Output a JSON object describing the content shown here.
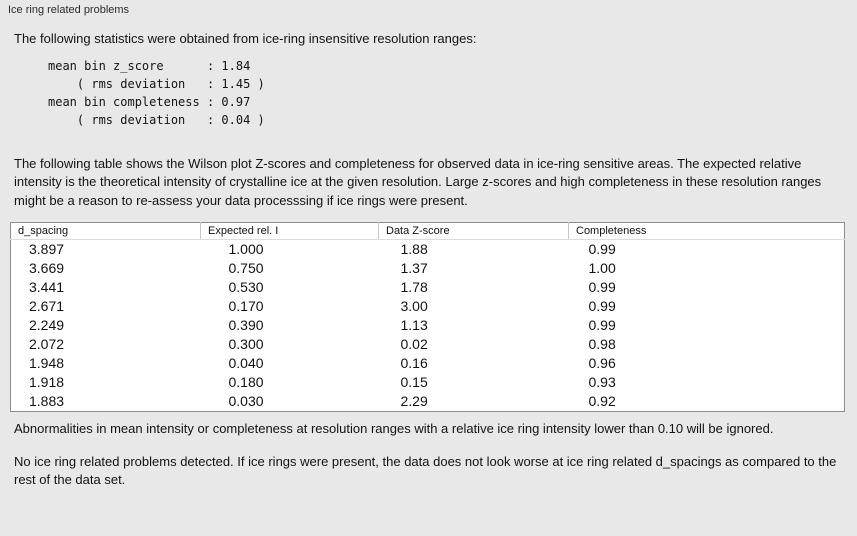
{
  "panel": {
    "title": "Ice ring related problems"
  },
  "intro": "The following statistics were obtained from ice-ring insensitive resolution ranges:",
  "stats_block": "mean bin z_score      : 1.84\n    ( rms deviation   : 1.45 )\nmean bin completeness : 0.97\n    ( rms deviation   : 0.04 )",
  "description": "The following table shows the Wilson plot Z-scores and completeness for observed data in ice-ring sensitive areas. The expected relative intensity is the theoretical intensity of crystalline ice at the given resolution. Large z-scores and high completeness in these resolution ranges might be a reason to re-assess your data processsing if ice rings were present.",
  "table": {
    "headers": [
      "d_spacing",
      "Expected rel. I",
      "Data Z-score",
      "Completeness"
    ],
    "rows": [
      [
        "3.897",
        "1.000",
        "1.88",
        "0.99"
      ],
      [
        "3.669",
        "0.750",
        "1.37",
        "1.00"
      ],
      [
        "3.441",
        "0.530",
        "1.78",
        "0.99"
      ],
      [
        "2.671",
        "0.170",
        "3.00",
        "0.99"
      ],
      [
        "2.249",
        "0.390",
        "1.13",
        "0.99"
      ],
      [
        "2.072",
        "0.300",
        "0.02",
        "0.98"
      ],
      [
        "1.948",
        "0.040",
        "0.16",
        "0.96"
      ],
      [
        "1.918",
        "0.180",
        "0.15",
        "0.93"
      ],
      [
        "1.883",
        "0.030",
        "2.29",
        "0.92"
      ]
    ]
  },
  "note_ignore": "Abnormalities in mean intensity or completeness at resolution ranges with a relative ice ring intensity lower than 0.10 will be ignored.",
  "conclusion": "No ice ring related problems detected. If ice rings were present, the data does not look worse at ice ring related d_spacings as compared to the rest of the data set."
}
